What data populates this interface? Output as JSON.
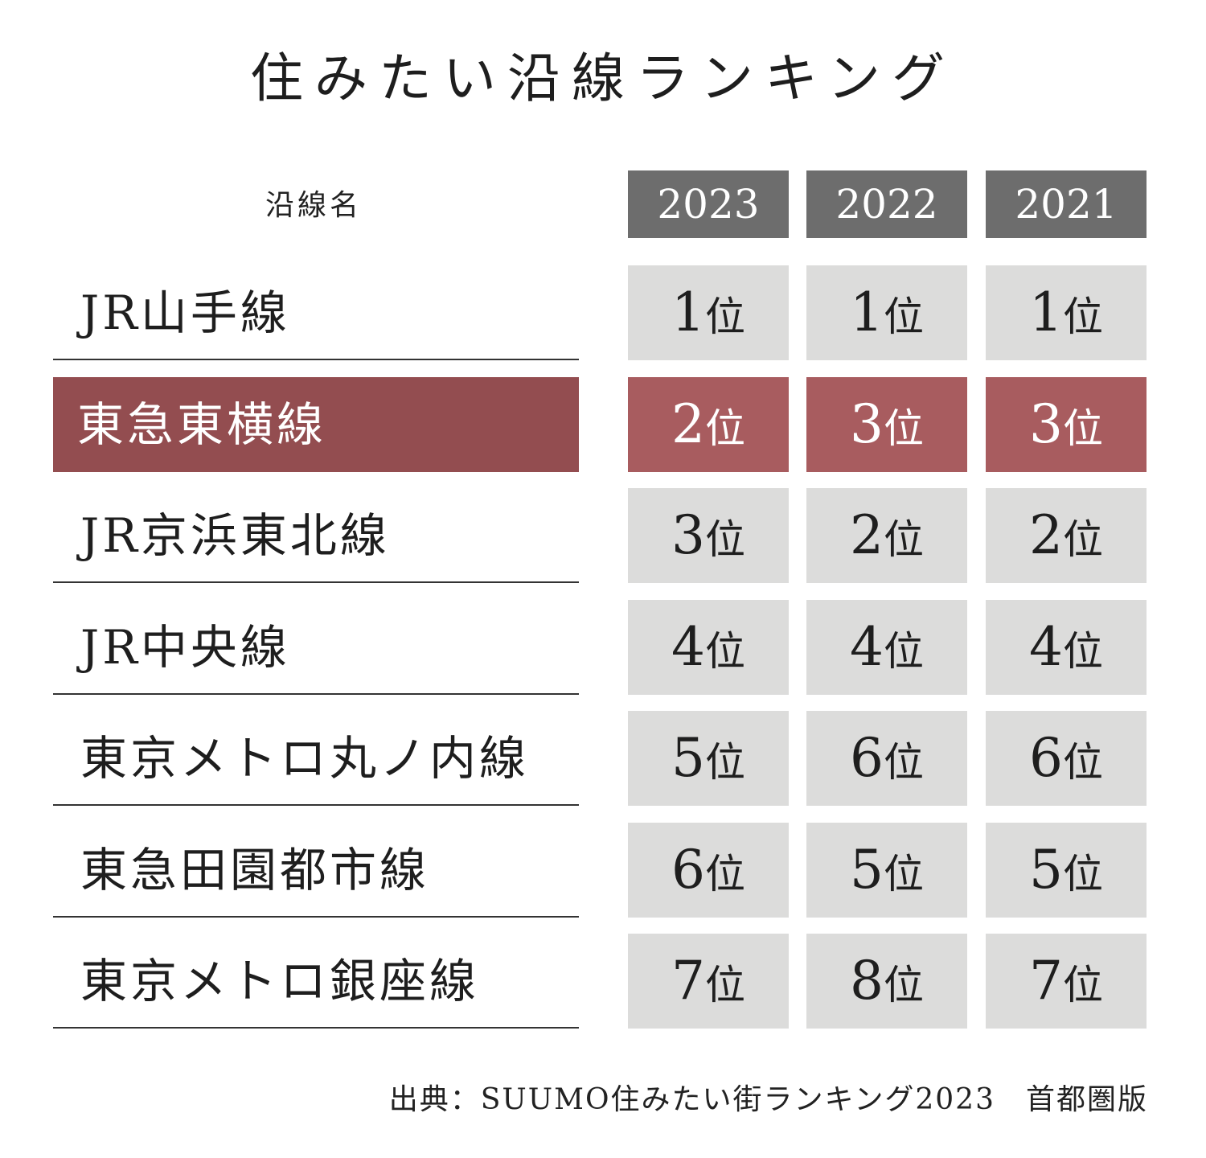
{
  "title": "住みたい沿線ランキング",
  "column_label": "沿線名",
  "years": [
    "2023",
    "2022",
    "2021"
  ],
  "rank_suffix": "位",
  "source": "出典：SUUMO住みたい街ランキング2023　首都圏版",
  "colors": {
    "header_bg": "#6d6d6d",
    "cell_bg": "#dcdcdb",
    "highlight_name_bg": "#934d50",
    "highlight_cell_bg": "#a85c5f"
  },
  "chart_data": {
    "type": "table",
    "title": "住みたい沿線ランキング",
    "columns": [
      "沿線名",
      "2023",
      "2022",
      "2021"
    ],
    "highlighted_row": "東急東横線",
    "rows": [
      {
        "name": "JR山手線",
        "ranks": [
          1,
          1,
          1
        ]
      },
      {
        "name": "東急東横線",
        "ranks": [
          2,
          3,
          3
        ]
      },
      {
        "name": "JR京浜東北線",
        "ranks": [
          3,
          2,
          2
        ]
      },
      {
        "name": "JR中央線",
        "ranks": [
          4,
          4,
          4
        ]
      },
      {
        "name": "東京メトロ丸ノ内線",
        "ranks": [
          5,
          6,
          6
        ]
      },
      {
        "name": "東急田園都市線",
        "ranks": [
          6,
          5,
          5
        ]
      },
      {
        "name": "東京メトロ銀座線",
        "ranks": [
          7,
          8,
          7
        ]
      }
    ]
  }
}
